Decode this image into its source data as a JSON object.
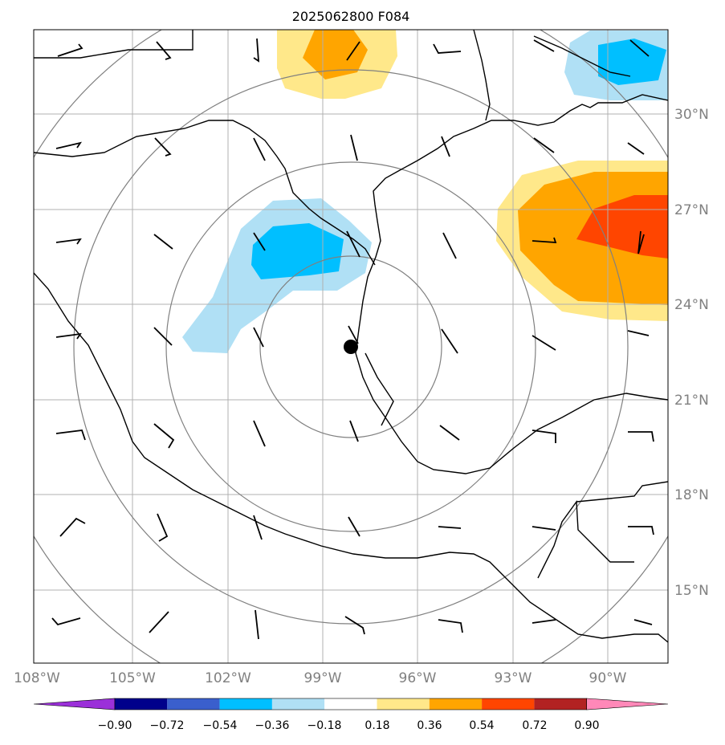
{
  "title": "2025062800 F084",
  "map": {
    "lat_labels": [
      "30°N",
      "27°N",
      "24°N",
      "21°N",
      "18°N",
      "15°N"
    ],
    "lon_labels": [
      "108°W",
      "105°W",
      "102°W",
      "99°W",
      "96°W",
      "93°W",
      "90°W"
    ],
    "storm_center": {
      "lat": 22.7,
      "lon": -98.9,
      "marker": "filled-circle"
    },
    "range_rings": "concentric circles around storm center",
    "gridlines": true
  },
  "colorbar": {
    "ticks": [
      "−0.90",
      "−0.72",
      "−0.54",
      "−0.36",
      "−0.18",
      "0.18",
      "0.36",
      "0.54",
      "0.72",
      "0.90"
    ],
    "colors": [
      "#9b30d9",
      "#00008b",
      "#3a5fcd",
      "#00bfff",
      "#b0e0f5",
      "#ffffff",
      "#ffe88a",
      "#ffa500",
      "#ff4500",
      "#b22222",
      "#ff88b8"
    ],
    "extend": "both"
  },
  "colors": {
    "coast": "#000000",
    "grid": "#b0b0b0",
    "rings": "#808080",
    "label": "#808080"
  }
}
